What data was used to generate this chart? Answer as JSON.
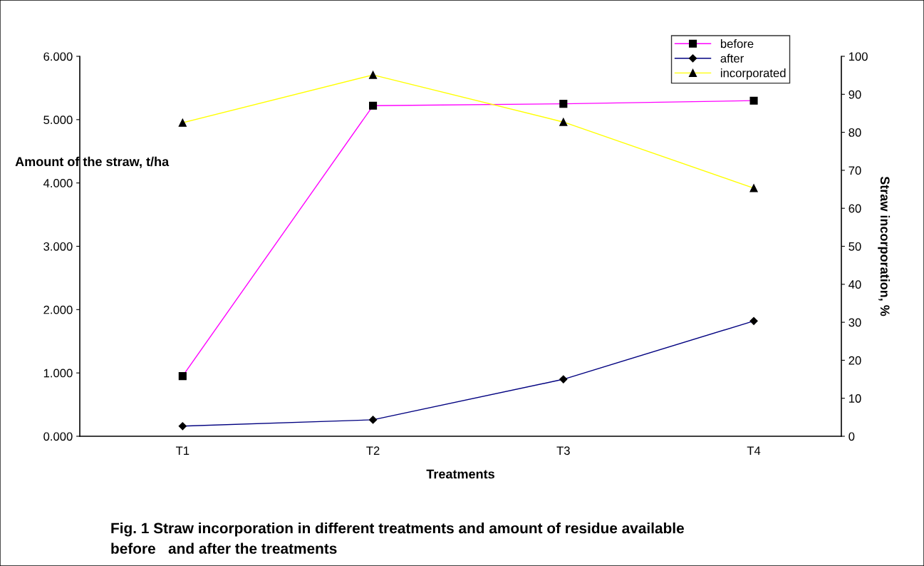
{
  "chart_data": {
    "type": "line",
    "xlabel": "Treatments",
    "ylabel": "Amount of the straw, t/ha",
    "y2label": "Straw incorporation, %",
    "categories": [
      "T1",
      "T2",
      "T3",
      "T4"
    ],
    "series": [
      {
        "name": "before",
        "color": "#ff00ff",
        "marker": "square",
        "values": [
          0.95,
          5.22,
          5.25,
          5.3
        ]
      },
      {
        "name": "after",
        "color": "#000080",
        "marker": "diamond",
        "values": [
          0.16,
          0.26,
          0.9,
          1.82
        ]
      },
      {
        "name": "incorporated",
        "color": "#ffff00",
        "marker": "triangle",
        "axis": "y2",
        "values": [
          82.5,
          95.1,
          82.7,
          65.3
        ]
      }
    ],
    "ylim": [
      0,
      6
    ],
    "yticks": [
      {
        "value": 0,
        "label": "0.000"
      },
      {
        "value": 1,
        "label": "1.000"
      },
      {
        "value": 2,
        "label": "2.000"
      },
      {
        "value": 3,
        "label": "3.000"
      },
      {
        "value": 4,
        "label": "4.000"
      },
      {
        "value": 5,
        "label": "5.000"
      },
      {
        "value": 6,
        "label": "6.000"
      }
    ],
    "y2lim": [
      0,
      100
    ],
    "y2ticks": [
      0,
      10,
      20,
      30,
      40,
      50,
      60,
      70,
      80,
      90,
      100
    ],
    "grid": false,
    "legend": "top right",
    "annotations": [
      "Fig. 1 Straw incorporation in different treatments and amount of residue available\nbefore   and after the treatments"
    ]
  }
}
